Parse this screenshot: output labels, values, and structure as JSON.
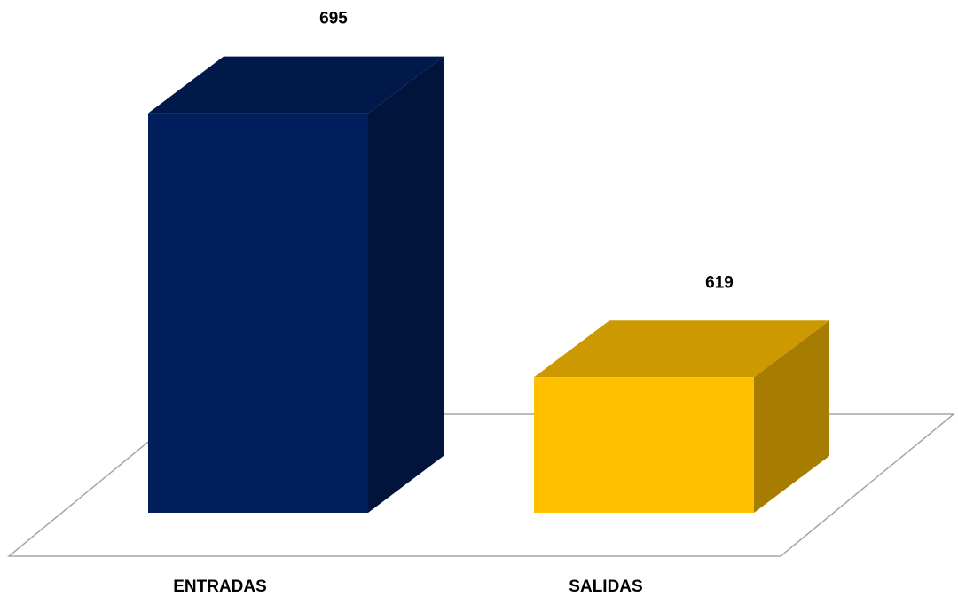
{
  "chart_data": {
    "type": "bar3d",
    "categories": [
      "ENTRADAS",
      "SALIDAS"
    ],
    "values": [
      695,
      619
    ],
    "colors": [
      "#001F5C",
      "#FFC000"
    ],
    "ylim": [
      580,
      700
    ]
  }
}
